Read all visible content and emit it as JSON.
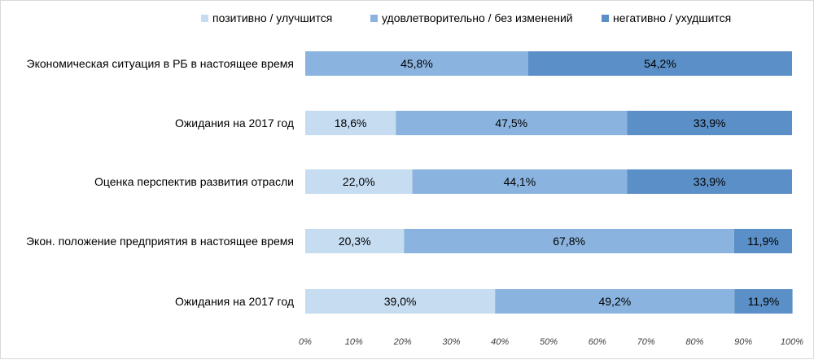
{
  "chart_data": {
    "type": "bar",
    "orientation": "horizontal",
    "stacked": true,
    "categories": [
      "Экономическая ситуация в РБ в настоящее время",
      "Ожидания на 2017 год",
      "Оценка перспектив развития отрасли",
      "Экон. положение предприятия в настоящее время",
      "Ожидания на 2017 год"
    ],
    "series": [
      {
        "name": "позитивно / улучшится",
        "color": "#c6dcf0",
        "values": [
          0,
          18.6,
          22.0,
          20.3,
          39.0
        ],
        "labels": [
          "",
          "18,6%",
          "22,0%",
          "20,3%",
          "39,0%"
        ]
      },
      {
        "name": "удовлетворительно / без изменений",
        "color": "#8ab4df",
        "values": [
          45.8,
          47.5,
          44.1,
          67.8,
          49.2
        ],
        "labels": [
          "45,8%",
          "47,5%",
          "44,1%",
          "67,8%",
          "49,2%"
        ]
      },
      {
        "name": "негативно / ухудшится",
        "color": "#5b8fc7",
        "values": [
          54.2,
          33.9,
          33.9,
          11.9,
          11.9
        ],
        "labels": [
          "54,2%",
          "33,9%",
          "33,9%",
          "11,9%",
          "11,9%"
        ]
      }
    ],
    "xlim": [
      0,
      100
    ],
    "x_ticks": [
      "0%",
      "10%",
      "20%",
      "30%",
      "40%",
      "50%",
      "60%",
      "70%",
      "80%",
      "90%",
      "100%"
    ],
    "legend_position": "top",
    "grid": false
  }
}
